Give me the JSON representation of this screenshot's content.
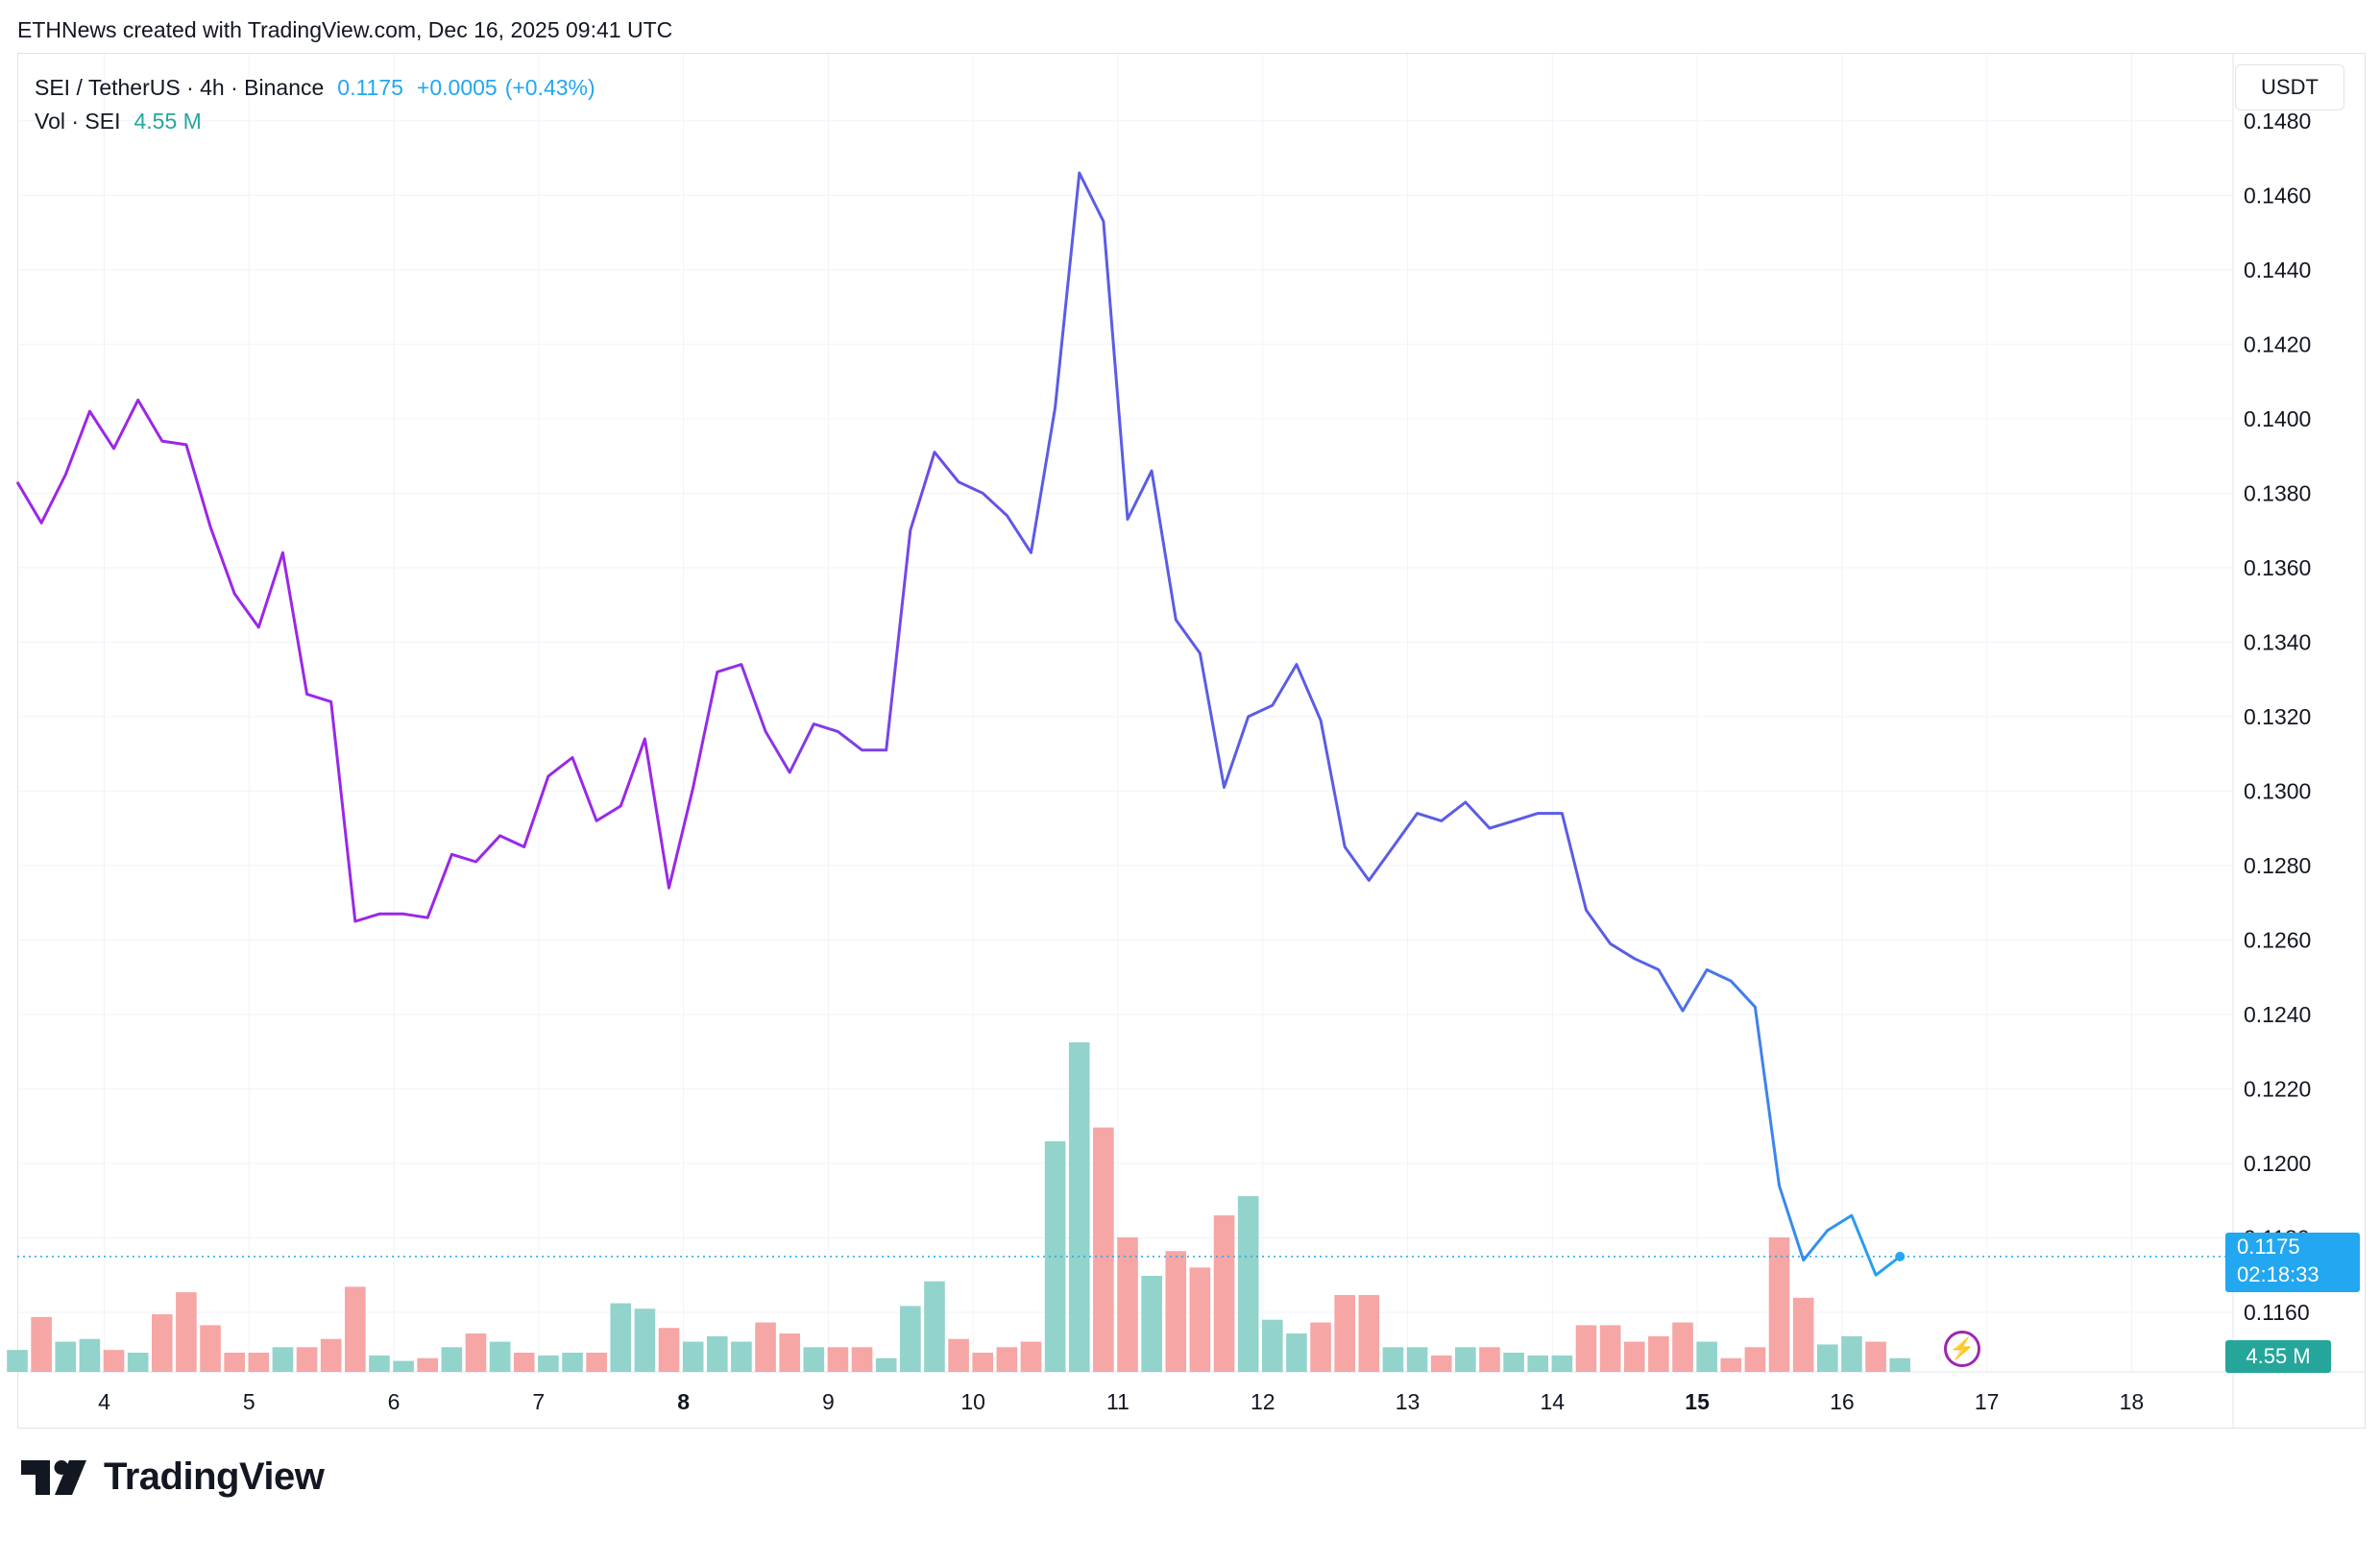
{
  "header": {
    "caption": "ETHNews created with TradingView.com, Dec 16, 2025 09:41 UTC"
  },
  "legend": {
    "symbol": "SEI / TetherUS · 4h · Binance",
    "last": "0.1175",
    "change": "+0.0005",
    "change_pct": "(+0.43%)",
    "vol_label": "Vol · SEI",
    "vol_value": "4.55 M"
  },
  "currency_button": "USDT",
  "price_badge": {
    "price": "0.1175",
    "countdown": "02:18:33"
  },
  "vol_badge": "4.55 M",
  "logo": {
    "text": "TradingView"
  },
  "colors": {
    "line_start": "#9b27e8",
    "line_mid": "#5b5ce6",
    "line_end": "#22a7f0",
    "vol_up": "#92d3cb",
    "vol_down": "#f5a6a5",
    "grid": "#f0f3fa",
    "axis_text": "#131722"
  },
  "chart_data": {
    "type": "line",
    "interval": "4h",
    "y_axis": {
      "side": "right",
      "range": [
        0.1144,
        0.1498
      ],
      "ticks": [
        "0.1480",
        "0.1460",
        "0.1440",
        "0.1420",
        "0.1400",
        "0.1380",
        "0.1360",
        "0.1340",
        "0.1320",
        "0.1300",
        "0.1280",
        "0.1260",
        "0.1240",
        "0.1220",
        "0.1200",
        "0.1180",
        "0.1160"
      ]
    },
    "x_axis": {
      "range": [
        3.4,
        18.7
      ],
      "ticks": [
        {
          "label": "4",
          "pos": 4,
          "bold": false
        },
        {
          "label": "5",
          "pos": 5,
          "bold": false
        },
        {
          "label": "6",
          "pos": 6,
          "bold": false
        },
        {
          "label": "7",
          "pos": 7,
          "bold": false
        },
        {
          "label": "8",
          "pos": 8,
          "bold": true
        },
        {
          "label": "9",
          "pos": 9,
          "bold": false
        },
        {
          "label": "10",
          "pos": 10,
          "bold": false
        },
        {
          "label": "11",
          "pos": 11,
          "bold": false
        },
        {
          "label": "12",
          "pos": 12,
          "bold": false
        },
        {
          "label": "13",
          "pos": 13,
          "bold": false
        },
        {
          "label": "14",
          "pos": 14,
          "bold": false
        },
        {
          "label": "15",
          "pos": 15,
          "bold": true
        },
        {
          "label": "16",
          "pos": 16,
          "bold": false
        },
        {
          "label": "17",
          "pos": 17,
          "bold": false
        },
        {
          "label": "18",
          "pos": 18,
          "bold": false
        }
      ]
    },
    "last_price": 0.1175,
    "series": [
      {
        "values": [
          0.1383,
          0.1372,
          0.1385,
          0.1402,
          0.1392,
          0.1405,
          0.1394,
          0.1393,
          0.1371,
          0.1353,
          0.1344,
          0.1364,
          0.1326,
          0.1324,
          0.1265,
          0.1267,
          0.1267,
          0.1266,
          0.1283,
          0.1281,
          0.1288,
          0.1285,
          0.1304,
          0.1309,
          0.1292,
          0.1296,
          0.1314,
          0.1274,
          0.1301,
          0.1332,
          0.1334,
          0.1316,
          0.1305,
          0.1318,
          0.1316,
          0.1311,
          0.1311,
          0.137,
          0.1391,
          0.1383,
          0.138,
          0.1374,
          0.1364,
          0.1403,
          0.1466,
          0.1453,
          0.1373,
          0.1386,
          0.1346,
          0.1337,
          0.1301,
          0.132,
          0.1323,
          0.1334,
          0.1319,
          0.1285,
          0.1276,
          0.1285,
          0.1294,
          0.1292,
          0.1297,
          0.129,
          0.1292,
          0.1294,
          0.1294,
          0.1268,
          0.1259,
          0.1255,
          0.1252,
          0.1241,
          0.1252,
          0.1249,
          0.1242,
          0.1194,
          0.1174,
          0.1182,
          0.1186,
          0.117,
          0.1175
        ]
      }
    ],
    "volume": {
      "label": "Vol · SEI",
      "range_max": 100,
      "values": [
        8,
        20,
        11,
        12,
        8,
        7,
        21,
        29,
        17,
        7,
        7,
        9,
        9,
        12,
        31,
        6,
        4,
        5,
        9,
        14,
        11,
        7,
        6,
        7,
        7,
        25,
        23,
        16,
        11,
        13,
        11,
        18,
        14,
        9,
        9,
        9,
        5,
        24,
        33,
        12,
        7,
        9,
        11,
        84,
        120,
        89,
        49,
        35,
        44,
        38,
        57,
        64,
        19,
        14,
        18,
        28,
        28,
        9,
        9,
        6,
        9,
        9,
        7,
        6,
        6,
        17,
        17,
        11,
        13,
        18,
        11,
        5,
        9,
        49,
        27,
        10,
        13,
        11,
        5
      ]
    }
  }
}
